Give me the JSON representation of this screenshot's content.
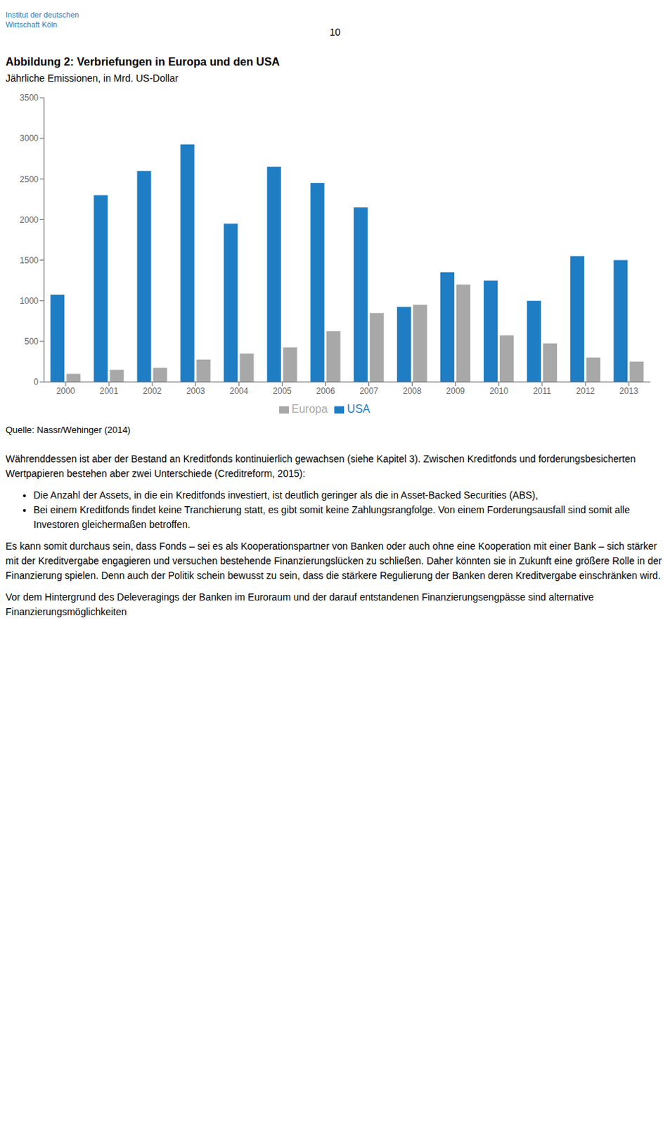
{
  "chart_data": {
    "type": "bar",
    "title": "Abbildung 2: Verbriefungen in Europa und den USA",
    "subtitle": "Jährliche Emissionen, in Mrd. US-Dollar",
    "categories": [
      "2000",
      "2001",
      "2002",
      "2003",
      "2004",
      "2005",
      "2006",
      "2007",
      "2008",
      "2009",
      "2010",
      "2011",
      "2012",
      "2013"
    ],
    "series": [
      {
        "name": "USA",
        "color": "#1F7DC4",
        "values": [
          1075,
          2300,
          2600,
          2925,
          1950,
          2650,
          2450,
          2150,
          925,
          1350,
          1250,
          1000,
          1550,
          1500
        ]
      },
      {
        "name": "Europa",
        "color": "#A8A8A8",
        "values": [
          100,
          150,
          175,
          275,
          350,
          425,
          625,
          850,
          950,
          1200,
          575,
          475,
          300,
          250
        ]
      }
    ],
    "ylim": [
      0,
      3500
    ],
    "yticks": [
      0,
      500,
      1000,
      1500,
      2000,
      2500,
      3000,
      3500
    ],
    "grid": false,
    "legend": "bottom",
    "annotations": [
      "10",
      "Institut der deutschen",
      "Wirtschaft Köln",
      "Quelle: Nassr/Wehinger (2014)",
      "Währenddessen ist aber der Bestand an Kreditfonds kontinuierlich gewachsen (siehe Kapitel 3). Zwischen Kreditfonds und forderungsbesicherten Wertpapieren bestehen aber zwei Unterschiede (Creditreform, 2015):",
      "Die Anzahl der Assets, in die ein Kreditfonds investiert, ist deutlich geringer als die in Asset-Backed Securities (ABS),",
      "Bei einem Kreditfonds findet keine Tranchierung statt, es gibt somit keine Zahlungsrangfolge. Von einem Forderungsausfall sind somit alle Investoren gleichermaßen betroffen.",
      "Es kann somit durchaus sein, dass Fonds – sei es als Kooperationspartner von Banken oder auch ohne eine Kooperation mit einer Bank – sich stärker mit der Kreditvergabe engagieren und versuchen bestehende Finanzierungslücken zu schließen. Daher könnten sie in Zukunft eine größere Rolle in der Finanzierung spielen. Denn auch der Politik schein bewusst zu sein, dass die stärkere Regulierung der Banken deren Kreditvergabe einschränken wird.",
      "Vor dem Hintergrund des Deleveragings der Banken im Euroraum und der darauf entstandenen Finanzierungsengpässe sind alternative Finanzierungsmöglichkeiten"
    ]
  }
}
